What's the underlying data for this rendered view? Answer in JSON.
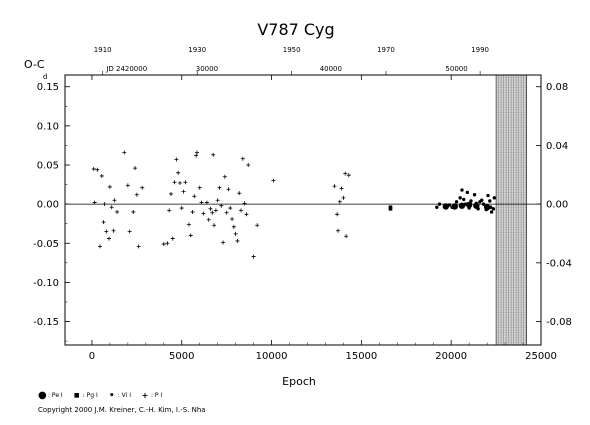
{
  "chart_data": {
    "type": "scatter",
    "title": "V787  Cyg",
    "xlabel": "Epoch",
    "ylabel": "O-C",
    "ylabel_unit": "d",
    "xlim": [
      -1500,
      25000
    ],
    "ylim": [
      -0.18,
      0.165
    ],
    "x_ticks": [
      "0",
      "5000",
      "10000",
      "15000",
      "20000",
      "25000"
    ],
    "y_ticks_left": [
      "-0.15",
      "-0.10",
      "-0.05",
      "0.00",
      "0.05",
      "0.10",
      "0.15"
    ],
    "y_ticks_right": [
      "-0.08",
      "-0.04",
      "0.00",
      "0.04",
      "0.08"
    ],
    "top_year_ticks": [
      "1910",
      "1930",
      "1950",
      "1970",
      "1990"
    ],
    "jd_ticks": [
      "JD 2420000",
      "30000",
      "40000",
      "50000"
    ],
    "shaded_region_x": [
      22500,
      24200
    ],
    "series": [
      {
        "name": "Pe",
        "marker": "large-dot",
        "points": [
          [
            19700,
            -0.003
          ],
          [
            20200,
            -0.003
          ],
          [
            20600,
            -0.002
          ],
          [
            21000,
            -0.001
          ],
          [
            21400,
            -0.002
          ],
          [
            22000,
            -0.004
          ]
        ]
      },
      {
        "name": "Pg",
        "marker": "square",
        "points": [
          [
            16620,
            -0.004
          ],
          [
            16620,
            -0.006
          ]
        ]
      },
      {
        "name": "Vi",
        "marker": "dot",
        "points": [
          [
            19200,
            -0.004
          ],
          [
            19350,
            0.0
          ],
          [
            19900,
            -0.001
          ],
          [
            20050,
            -0.004
          ],
          [
            20300,
            0.003
          ],
          [
            20500,
            0.008
          ],
          [
            20600,
            0.018
          ],
          [
            20700,
            0.006
          ],
          [
            20800,
            0.0
          ],
          [
            20900,
            0.015
          ],
          [
            21000,
            -0.005
          ],
          [
            21100,
            0.004
          ],
          [
            21300,
            0.012
          ],
          [
            21400,
            0.001
          ],
          [
            21500,
            -0.006
          ],
          [
            21600,
            0.003
          ],
          [
            21700,
            0.005
          ],
          [
            21800,
            0.0
          ],
          [
            21950,
            -0.007
          ],
          [
            22050,
            0.011
          ],
          [
            22150,
            0.004
          ],
          [
            22250,
            -0.01
          ],
          [
            22350,
            -0.006
          ],
          [
            22400,
            0.008
          ],
          [
            22200,
            -0.004
          ]
        ]
      },
      {
        "name": "P",
        "marker": "plus",
        "points": [
          [
            100,
            0.045
          ],
          [
            150,
            0.002
          ],
          [
            300,
            0.044
          ],
          [
            450,
            -0.054
          ],
          [
            550,
            0.036
          ],
          [
            650,
            -0.023
          ],
          [
            700,
            0.0
          ],
          [
            800,
            -0.035
          ],
          [
            950,
            -0.044
          ],
          [
            1000,
            0.022
          ],
          [
            1100,
            -0.004
          ],
          [
            1200,
            -0.034
          ],
          [
            1250,
            0.005
          ],
          [
            1400,
            -0.01
          ],
          [
            1800,
            0.066
          ],
          [
            2000,
            0.024
          ],
          [
            2100,
            -0.035
          ],
          [
            2300,
            -0.01
          ],
          [
            2400,
            0.046
          ],
          [
            2500,
            0.012
          ],
          [
            2600,
            -0.054
          ],
          [
            2800,
            0.021
          ],
          [
            4000,
            -0.051
          ],
          [
            4200,
            -0.05
          ],
          [
            4300,
            -0.008
          ],
          [
            4400,
            0.013
          ],
          [
            4500,
            -0.044
          ],
          [
            4600,
            0.028
          ],
          [
            4700,
            0.057
          ],
          [
            4800,
            0.04
          ],
          [
            4900,
            0.027
          ],
          [
            5000,
            -0.005
          ],
          [
            5100,
            0.016
          ],
          [
            5200,
            0.028
          ],
          [
            5400,
            -0.026
          ],
          [
            5500,
            -0.04
          ],
          [
            5600,
            -0.01
          ],
          [
            5700,
            0.01
          ],
          [
            5800,
            0.062
          ],
          [
            5850,
            0.066
          ],
          [
            6000,
            0.021
          ],
          [
            6100,
            0.002
          ],
          [
            6200,
            -0.012
          ],
          [
            6400,
            0.002
          ],
          [
            6500,
            -0.02
          ],
          [
            6600,
            -0.006
          ],
          [
            6700,
            -0.011
          ],
          [
            6750,
            0.063
          ],
          [
            6800,
            -0.027
          ],
          [
            6900,
            -0.008
          ],
          [
            7000,
            0.005
          ],
          [
            7100,
            0.021
          ],
          [
            7200,
            -0.002
          ],
          [
            7300,
            -0.049
          ],
          [
            7400,
            0.035
          ],
          [
            7500,
            -0.011
          ],
          [
            7600,
            0.019
          ],
          [
            7700,
            -0.005
          ],
          [
            7800,
            -0.019
          ],
          [
            7900,
            -0.029
          ],
          [
            8000,
            -0.038
          ],
          [
            8100,
            -0.047
          ],
          [
            8200,
            0.014
          ],
          [
            8300,
            -0.008
          ],
          [
            8400,
            0.058
          ],
          [
            8500,
            0.001
          ],
          [
            8600,
            -0.013
          ],
          [
            8700,
            0.05
          ],
          [
            9000,
            -0.067
          ],
          [
            9200,
            -0.027
          ],
          [
            10100,
            0.03
          ],
          [
            13500,
            0.023
          ],
          [
            13650,
            -0.013
          ],
          [
            13700,
            -0.034
          ],
          [
            13800,
            0.003
          ],
          [
            13900,
            0.02
          ],
          [
            14000,
            0.008
          ],
          [
            14100,
            0.039
          ],
          [
            14150,
            -0.041
          ],
          [
            14300,
            0.037
          ]
        ]
      }
    ]
  },
  "legend": [
    {
      "symbol": "●",
      "label": ": Pe I"
    },
    {
      "symbol": "■",
      "label": ": Pg I"
    },
    {
      "symbol": "•",
      "label": ": Vi I"
    },
    {
      "symbol": "+",
      "label": ": P I"
    }
  ],
  "copyright": "Copyright 2000 J.M. Kreiner, C.-H. Kim, I.-S. Nha"
}
